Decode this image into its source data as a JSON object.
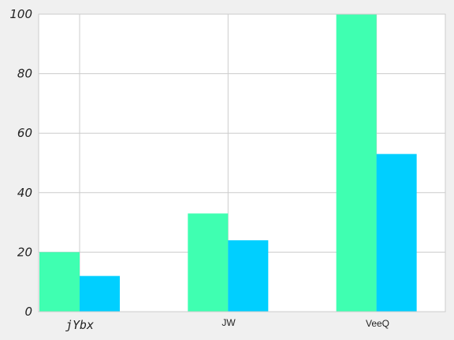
{
  "chart_data": {
    "type": "bar",
    "title": "",
    "xlabel": "",
    "ylabel": "",
    "categories": [
      "jYbx",
      "JW",
      "VeeQ"
    ],
    "series": [
      {
        "values": [
          20,
          33,
          100
        ],
        "color": "#3fffb1"
      },
      {
        "values": [
          12,
          24,
          53
        ],
        "color": "#00cfff"
      }
    ],
    "ylim": [
      0,
      100
    ],
    "yticks": [
      "0",
      "20",
      "40",
      "60",
      "80",
      "100"
    ],
    "grid": true,
    "legend": "none"
  }
}
